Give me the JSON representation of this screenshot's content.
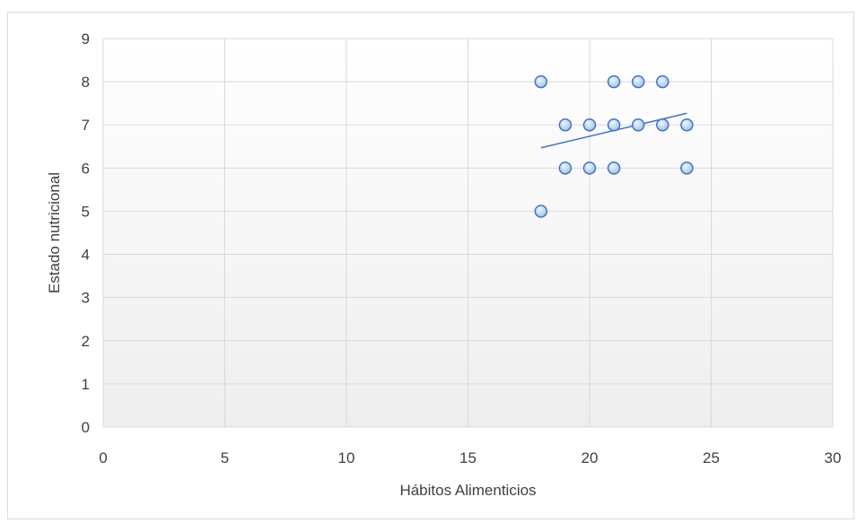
{
  "chart_data": {
    "type": "scatter",
    "title": "",
    "xlabel": "Hábitos Alimenticios",
    "ylabel": "Estado nutricional",
    "xlim": [
      0,
      30
    ],
    "ylim": [
      0,
      9
    ],
    "x_ticks": [
      0,
      5,
      10,
      15,
      20,
      25,
      30
    ],
    "y_ticks": [
      0,
      1,
      2,
      3,
      4,
      5,
      6,
      7,
      8,
      9
    ],
    "x_tick_labels": [
      "0",
      "5",
      "10",
      "15",
      "20",
      "25",
      "30"
    ],
    "y_tick_labels": [
      "0",
      "1",
      "2",
      "3",
      "4",
      "5",
      "6",
      "7",
      "8",
      "9"
    ],
    "grid": true,
    "legend": "none",
    "series": [
      {
        "points": [
          {
            "x": 18,
            "y": 8
          },
          {
            "x": 21,
            "y": 8
          },
          {
            "x": 22,
            "y": 8
          },
          {
            "x": 23,
            "y": 8
          },
          {
            "x": 19,
            "y": 7
          },
          {
            "x": 20,
            "y": 7
          },
          {
            "x": 21,
            "y": 7
          },
          {
            "x": 22,
            "y": 7
          },
          {
            "x": 23,
            "y": 7
          },
          {
            "x": 24,
            "y": 7
          },
          {
            "x": 19,
            "y": 6
          },
          {
            "x": 20,
            "y": 6
          },
          {
            "x": 21,
            "y": 6
          },
          {
            "x": 24,
            "y": 6
          },
          {
            "x": 18,
            "y": 5
          }
        ]
      }
    ],
    "trendline": {
      "type": "linear",
      "start": {
        "x": 18,
        "y": 6.47
      },
      "end": {
        "x": 24,
        "y": 7.27
      }
    },
    "colors": {
      "marker_fill": "#bdd7ee",
      "marker_stroke": "#4472c4",
      "trendline": "#4472c4",
      "gridline": "#d9d9d9",
      "axis_text": "#404040",
      "plot_bg_top": "#ffffff",
      "plot_bg_bottom": "#eeeeee"
    }
  }
}
